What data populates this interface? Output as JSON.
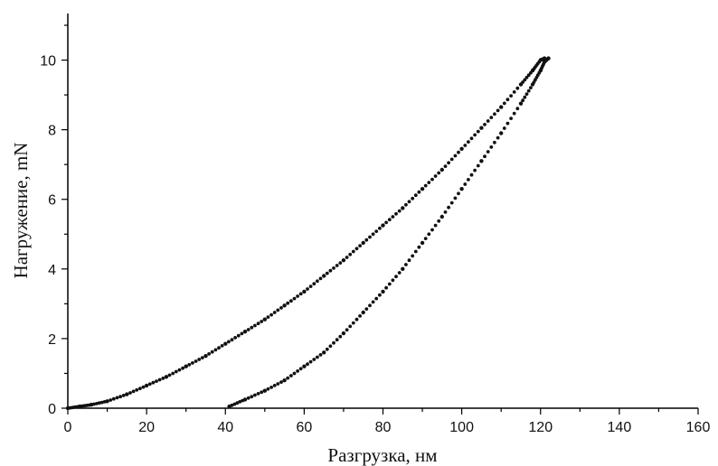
{
  "chart_data": {
    "type": "scatter",
    "xlabel": "Разгрузка, нм",
    "ylabel": "Нагружение, mN",
    "xlim": [
      0,
      160
    ],
    "ylim": [
      0,
      11
    ],
    "x_ticks": [
      "0",
      "20",
      "40",
      "60",
      "80",
      "100",
      "120",
      "140",
      "160"
    ],
    "y_ticks": [
      "0",
      "2",
      "4",
      "6",
      "8",
      "10"
    ],
    "grid": false,
    "marker_color": "#111111",
    "series": [
      {
        "x": [
          0,
          3,
          6,
          10,
          15,
          20,
          25,
          30,
          35,
          40,
          45,
          50,
          55,
          60,
          65,
          70,
          75,
          80,
          85,
          90,
          95,
          100,
          105,
          110,
          115,
          118,
          120,
          121
        ],
        "y": [
          0,
          0.05,
          0.1,
          0.2,
          0.4,
          0.65,
          0.9,
          1.2,
          1.5,
          1.85,
          2.2,
          2.55,
          2.95,
          3.35,
          3.8,
          4.25,
          4.75,
          5.25,
          5.75,
          6.3,
          6.85,
          7.45,
          8.05,
          8.65,
          9.3,
          9.7,
          10,
          10.05
        ]
      },
      {
        "x": [
          41,
          45,
          50,
          55,
          60,
          65,
          70,
          75,
          80,
          85,
          90,
          95,
          100,
          105,
          110,
          115,
          118,
          120,
          121,
          122
        ],
        "y": [
          0.05,
          0.25,
          0.5,
          0.8,
          1.2,
          1.6,
          2.15,
          2.75,
          3.35,
          4.0,
          4.75,
          5.5,
          6.3,
          7.1,
          7.9,
          8.75,
          9.3,
          9.7,
          9.95,
          10.05
        ]
      }
    ]
  }
}
